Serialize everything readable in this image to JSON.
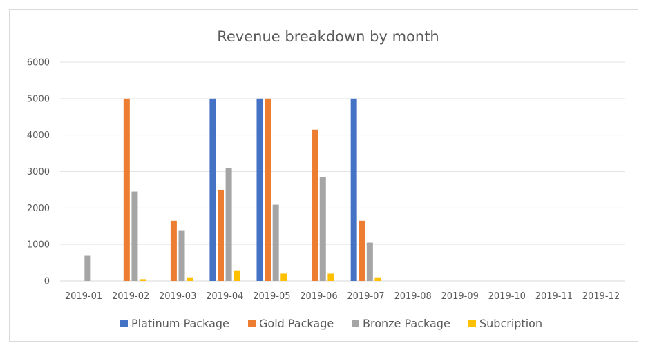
{
  "chart_data": {
    "type": "bar",
    "title": "Revenue breakdown by month",
    "categories": [
      "2019-01",
      "2019-02",
      "2019-03",
      "2019-04",
      "2019-05",
      "2019-06",
      "2019-07",
      "2019-08",
      "2019-09",
      "2019-10",
      "2019-11",
      "2019-12"
    ],
    "series": [
      {
        "name": "Platinum Package",
        "color": "#4472c4",
        "values": [
          0,
          0,
          0,
          5000,
          5000,
          0,
          5000,
          0,
          0,
          0,
          0,
          0
        ]
      },
      {
        "name": "Gold Package",
        "color": "#ed7d31",
        "values": [
          0,
          5000,
          1650,
          2500,
          5000,
          4150,
          1650,
          0,
          0,
          0,
          0,
          0
        ]
      },
      {
        "name": "Bronze Package",
        "color": "#a5a5a5",
        "values": [
          690,
          2450,
          1390,
          3100,
          2090,
          2840,
          1050,
          0,
          0,
          0,
          0,
          0
        ]
      },
      {
        "name": "Subcription",
        "color": "#ffc000",
        "values": [
          0,
          50,
          100,
          290,
          200,
          200,
          100,
          0,
          0,
          0,
          0,
          0
        ]
      }
    ],
    "yticks": [
      "0",
      "1000",
      "2000",
      "3000",
      "4000",
      "5000",
      "6000"
    ],
    "ylim": [
      0,
      6000
    ],
    "grid": true,
    "legend": "bottom"
  }
}
